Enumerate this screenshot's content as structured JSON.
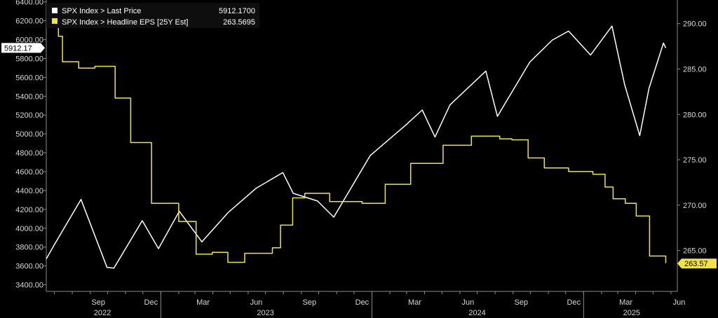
{
  "chart_data": {
    "type": "line",
    "x_axis": {
      "months": [
        "Sep",
        "Dec",
        "Mar",
        "Jun",
        "Sep",
        "Dec",
        "Mar",
        "Jun",
        "Sep",
        "Dec",
        "Mar",
        "Jun"
      ],
      "years": [
        "2022",
        "2023",
        "2024",
        "2025"
      ]
    },
    "y_left": {
      "ticks": [
        "6400.00",
        "6200.00",
        "6000.00",
        "5800.00",
        "5600.00",
        "5400.00",
        "5200.00",
        "5000.00",
        "4800.00",
        "4600.00",
        "4400.00",
        "4200.00",
        "4000.00",
        "3800.00",
        "3600.00",
        "3400.00"
      ],
      "ylim": [
        3330,
        6420
      ]
    },
    "y_right": {
      "ticks": [
        "290.00",
        "285.00",
        "280.00",
        "275.00",
        "270.00",
        "265.00"
      ],
      "ylim": [
        260.5,
        292.6
      ]
    },
    "legend": [
      {
        "label": "SPX Index > Last Price",
        "value": "5912.1700",
        "color": "#ffffff"
      },
      {
        "label": "SPX Index > Headline EPS [25Y Est]",
        "value": "263.5695",
        "color": "#f2e24a"
      }
    ],
    "last_tags": {
      "price": "5912.17",
      "eps": "263.57"
    },
    "series": [
      {
        "name": "SPX Index > Last Price",
        "axis": "left",
        "color": "#ffffff",
        "dates": [
          "2022-06-17",
          "2022-07-01",
          "2022-08-16",
          "2022-09-30",
          "2022-10-12",
          "2022-11-30",
          "2022-12-28",
          "2023-02-02",
          "2023-03-13",
          "2023-04-28",
          "2023-06-15",
          "2023-07-31",
          "2023-08-18",
          "2023-09-29",
          "2023-10-27",
          "2023-12-29",
          "2024-02-29",
          "2024-03-28",
          "2024-04-19",
          "2024-05-15",
          "2024-07-16",
          "2024-08-05",
          "2024-09-30",
          "2024-11-08",
          "2024-12-06",
          "2025-01-13",
          "2025-02-19",
          "2025-03-13",
          "2025-04-08",
          "2025-04-24",
          "2025-05-19",
          "2025-05-23"
        ],
        "values": [
          3675,
          3825,
          4305,
          3585,
          3577,
          4080,
          3783,
          4180,
          3855,
          4170,
          4425,
          4590,
          4370,
          4288,
          4117,
          4770,
          5096,
          5254,
          4967,
          5308,
          5667,
          5186,
          5762,
          5996,
          6090,
          5836,
          6144,
          5521,
          4982,
          5484,
          5963,
          5912
        ]
      },
      {
        "name": "SPX Index > Headline EPS [25Y Est]",
        "axis": "right",
        "color": "#f2e24a",
        "dates": [
          "2022-06-17",
          "2022-07-08",
          "2022-07-15",
          "2022-08-12",
          "2022-09-09",
          "2022-10-14",
          "2022-11-10",
          "2022-12-16",
          "2023-02-01",
          "2023-03-03",
          "2023-03-31",
          "2023-04-27",
          "2023-05-26",
          "2023-07-13",
          "2023-07-27",
          "2023-08-17",
          "2023-09-07",
          "2023-10-20",
          "2023-12-15",
          "2024-01-24",
          "2024-03-08",
          "2024-05-03",
          "2024-06-21",
          "2024-08-09",
          "2024-08-30",
          "2024-09-27",
          "2024-10-25",
          "2024-12-06",
          "2025-01-17",
          "2025-02-07",
          "2025-02-21",
          "2025-03-14",
          "2025-04-02",
          "2025-04-25",
          "2025-05-23"
        ],
        "values": [
          290.1,
          288.6,
          285.8,
          285.1,
          285.3,
          281.8,
          276.9,
          270.2,
          268.2,
          264.6,
          264.8,
          263.7,
          264.7,
          265.3,
          267.8,
          270.8,
          271.3,
          270.4,
          270.2,
          272.3,
          274.6,
          276.6,
          277.6,
          277.3,
          277.2,
          275.2,
          274.1,
          273.7,
          273.4,
          272.0,
          270.7,
          270.2,
          268.8,
          264.4,
          263.6
        ]
      }
    ]
  }
}
